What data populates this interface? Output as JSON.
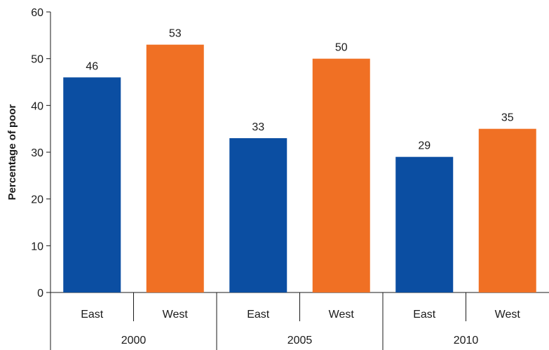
{
  "chart_data": {
    "type": "bar",
    "ylabel": "Percentage of poor",
    "ylim": [
      0,
      60
    ],
    "yticks": [
      0,
      10,
      20,
      30,
      40,
      50,
      60
    ],
    "grid": false,
    "groups": [
      "2000",
      "2005",
      "2010"
    ],
    "categories": [
      "East",
      "West",
      "East",
      "West",
      "East",
      "West"
    ],
    "values": [
      46,
      53,
      33,
      50,
      29,
      35
    ],
    "value_labels": [
      "46",
      "53",
      "33",
      "50",
      "29",
      "35"
    ],
    "colors": {
      "East": "#0b4ea2",
      "West": "#f07024"
    }
  }
}
